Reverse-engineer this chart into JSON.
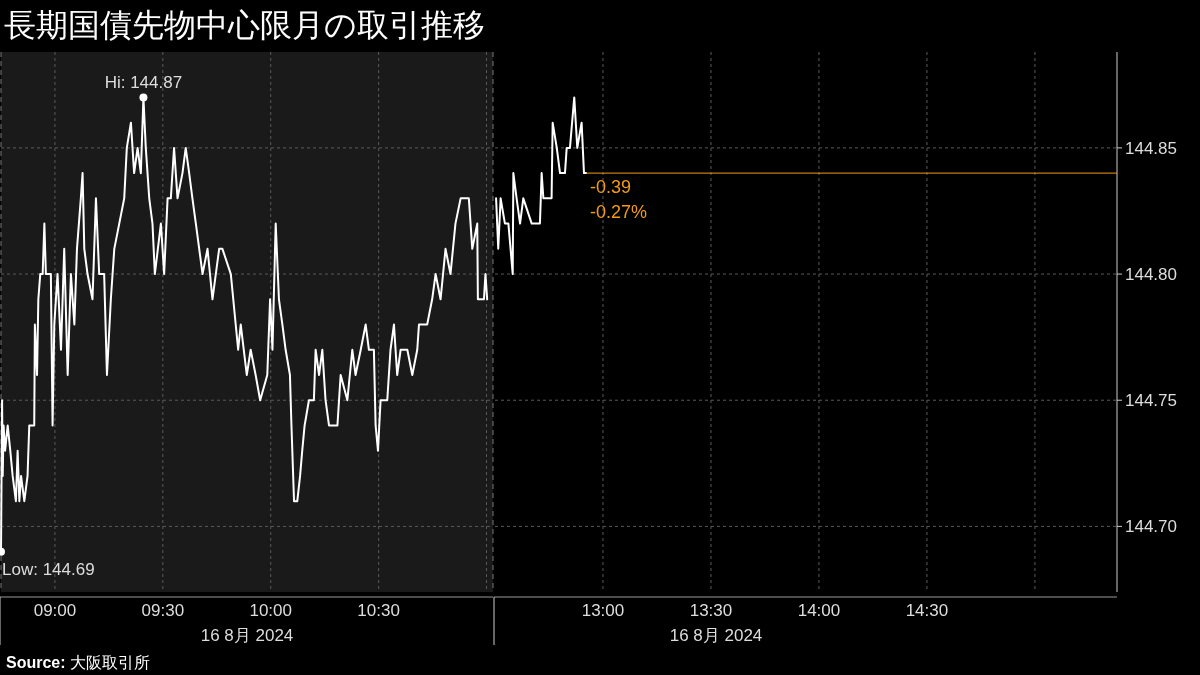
{
  "chart_data": [
    {
      "type": "line",
      "title": "長期国債先物中心限月の取引推移",
      "xlabel": "16 8月 2024",
      "tick_labels": "x",
      "grid": true,
      "xlim": [
        8.75,
        11.03
      ],
      "xticks": [
        {
          "value": 9,
          "label": "09:00"
        },
        {
          "value": 9.5,
          "label": "09:30"
        },
        {
          "value": 10,
          "label": "10:00"
        },
        {
          "value": 10.5,
          "label": "10:30"
        },
        {
          "value": 11,
          "label": null
        }
      ],
      "ylim": [
        144.674,
        144.888
      ],
      "yticks": [
        {
          "value": 144.7,
          "label": null
        },
        {
          "value": 144.75,
          "label": null
        },
        {
          "value": 144.8,
          "label": null
        },
        {
          "value": 144.85,
          "label": null
        }
      ],
      "series": [
        {
          "color": "#ffffff",
          "x": [
            8.75,
            8.755,
            8.758,
            8.762,
            8.769,
            8.781,
            8.793,
            8.804,
            8.819,
            8.827,
            8.835,
            8.843,
            8.858,
            8.873,
            8.881,
            8.904,
            8.907,
            8.917,
            8.923,
            8.932,
            8.943,
            8.951,
            8.958,
            8.981,
            8.989,
            8.997,
            9.012,
            9.028,
            9.043,
            9.059,
            9.074,
            9.09,
            9.102,
            9.12,
            9.128,
            9.136,
            9.151,
            9.174,
            9.19,
            9.205,
            9.228,
            9.241,
            9.259,
            9.275,
            9.298,
            9.321,
            9.333,
            9.352,
            9.367,
            9.383,
            9.398,
            9.41,
            9.421,
            9.437,
            9.452,
            9.463,
            9.491,
            9.506,
            9.522,
            9.537,
            9.552,
            9.568,
            9.591,
            9.606,
            9.622,
            9.637,
            9.653,
            9.684,
            9.707,
            9.73,
            9.761,
            9.776,
            9.815,
            9.849,
            9.861,
            9.889,
            9.907,
            9.93,
            9.951,
            9.984,
            9.997,
            10.008,
            10.023,
            10.038,
            10.054,
            10.069,
            10.089,
            10.096,
            10.108,
            10.123,
            10.136,
            10.146,
            10.157,
            10.177,
            10.2,
            10.208,
            10.224,
            10.239,
            10.254,
            10.27,
            10.309,
            10.324,
            10.355,
            10.378,
            10.393,
            10.417,
            10.44,
            10.455,
            10.478,
            10.486,
            10.497,
            10.509,
            10.54,
            10.555,
            10.571,
            10.586,
            10.602,
            10.633,
            10.656,
            10.679,
            10.687,
            10.725,
            10.748,
            10.764,
            10.787,
            10.81,
            10.833,
            10.856,
            10.88,
            10.918,
            10.934,
            10.957,
            10.96,
            10.988,
            10.995,
            11.003
          ],
          "values": [
            144.69,
            144.75,
            144.72,
            144.74,
            144.73,
            144.74,
            144.73,
            144.72,
            144.71,
            144.73,
            144.71,
            144.72,
            144.71,
            144.72,
            144.74,
            144.74,
            144.78,
            144.76,
            144.79,
            144.8,
            144.8,
            144.82,
            144.8,
            144.8,
            144.74,
            144.78,
            144.8,
            144.77,
            144.81,
            144.76,
            144.8,
            144.78,
            144.81,
            144.83,
            144.84,
            144.81,
            144.8,
            144.79,
            144.83,
            144.8,
            144.8,
            144.76,
            144.79,
            144.81,
            144.82,
            144.83,
            144.85,
            144.86,
            144.84,
            144.85,
            144.84,
            144.87,
            144.85,
            144.83,
            144.82,
            144.8,
            144.82,
            144.8,
            144.83,
            144.83,
            144.85,
            144.83,
            144.84,
            144.85,
            144.84,
            144.83,
            144.82,
            144.8,
            144.81,
            144.79,
            144.81,
            144.81,
            144.8,
            144.77,
            144.78,
            144.76,
            144.77,
            144.76,
            144.75,
            144.76,
            144.79,
            144.77,
            144.82,
            144.79,
            144.78,
            144.77,
            144.76,
            144.74,
            144.71,
            144.71,
            144.72,
            144.73,
            144.74,
            144.75,
            144.75,
            144.77,
            144.76,
            144.77,
            144.75,
            144.74,
            144.74,
            144.76,
            144.75,
            144.77,
            144.76,
            144.77,
            144.78,
            144.77,
            144.77,
            144.74,
            144.73,
            144.75,
            144.75,
            144.77,
            144.78,
            144.76,
            144.77,
            144.77,
            144.76,
            144.77,
            144.78,
            144.78,
            144.79,
            144.8,
            144.79,
            144.81,
            144.8,
            144.82,
            144.83,
            144.83,
            144.81,
            144.82,
            144.79,
            144.79,
            144.8,
            144.79
          ]
        }
      ],
      "annotations": [
        {
          "text": "Hi: 144.87",
          "x": 9.41,
          "y": 144.87
        },
        {
          "text": "Low: 144.69",
          "x": 8.75,
          "y": 144.69
        },
        "Source: 大阪取引所"
      ]
    },
    {
      "type": "line",
      "xlabel": "16 8月 2024",
      "grid": true,
      "xlim": [
        12.5,
        15.38
      ],
      "xticks": [
        {
          "value": 13,
          "label": "13:00"
        },
        {
          "value": 13.5,
          "label": "13:30"
        },
        {
          "value": 14,
          "label": "14:00"
        },
        {
          "value": 14.5,
          "label": "14:30"
        },
        {
          "value": 15,
          "label": null
        }
      ],
      "ylim": [
        144.674,
        144.888
      ],
      "yticks": [
        {
          "value": 144.7,
          "label": "144.70"
        },
        {
          "value": 144.75,
          "label": "144.75"
        },
        {
          "value": 144.8,
          "label": "144.80"
        },
        {
          "value": 144.85,
          "label": "144.85"
        }
      ],
      "series": [
        {
          "color": "#ffffff",
          "x": [
            12.505,
            12.515,
            12.526,
            12.546,
            12.562,
            12.582,
            12.585,
            12.6,
            12.616,
            12.631,
            12.67,
            12.708,
            12.716,
            12.724,
            12.762,
            12.767,
            12.786,
            12.801,
            12.824,
            12.832,
            12.847,
            12.867,
            12.881,
            12.901,
            12.912,
            12.921
          ],
          "values": [
            144.83,
            144.81,
            144.83,
            144.82,
            144.82,
            144.8,
            144.84,
            144.83,
            144.82,
            144.83,
            144.82,
            144.82,
            144.84,
            144.83,
            144.83,
            144.86,
            144.85,
            144.84,
            144.84,
            144.85,
            144.85,
            144.87,
            144.85,
            144.86,
            144.84,
            144.84
          ]
        }
      ],
      "ref_lines": [
        {
          "axis": "y",
          "value": 144.84,
          "color": "#f39c12"
        }
      ],
      "annotations": [
        {
          "text": "-0.39",
          "x": 12.921,
          "y": 144.84
        },
        {
          "text": "-0.27%",
          "x": 12.921,
          "y": 144.84
        }
      ]
    }
  ]
}
